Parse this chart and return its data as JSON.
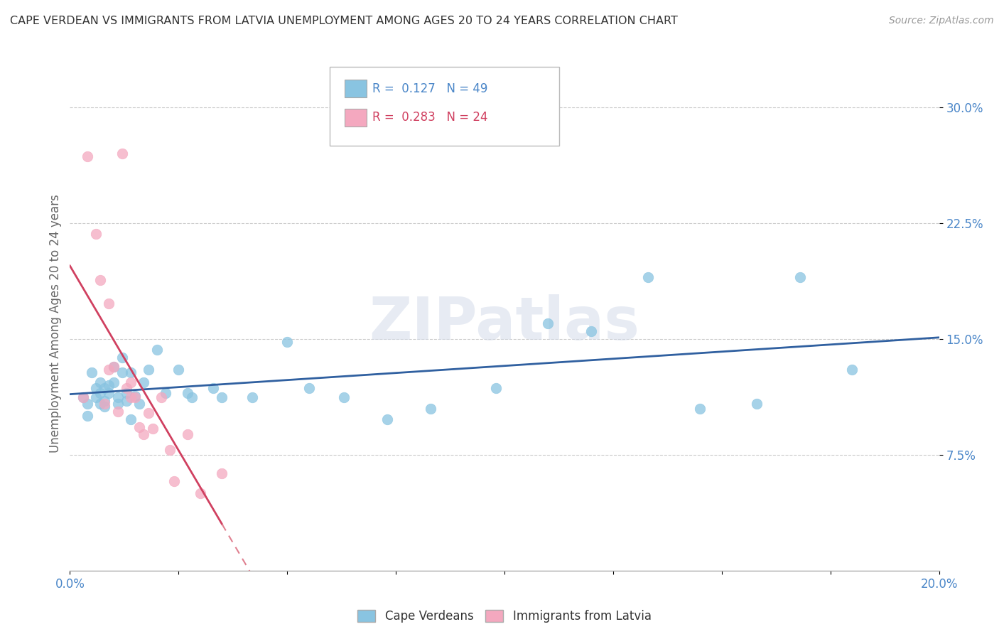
{
  "title": "CAPE VERDEAN VS IMMIGRANTS FROM LATVIA UNEMPLOYMENT AMONG AGES 20 TO 24 YEARS CORRELATION CHART",
  "source": "Source: ZipAtlas.com",
  "ylabel": "Unemployment Among Ages 20 to 24 years",
  "xlim": [
    0.0,
    0.2
  ],
  "ylim": [
    0.0,
    0.32
  ],
  "xticks": [
    0.0,
    0.025,
    0.05,
    0.075,
    0.1,
    0.125,
    0.15,
    0.175,
    0.2
  ],
  "ytick_positions": [
    0.075,
    0.15,
    0.225,
    0.3
  ],
  "yticklabels": [
    "7.5%",
    "15.0%",
    "22.5%",
    "30.0%"
  ],
  "grid_color": "#cccccc",
  "background_color": "#ffffff",
  "blue_color": "#89c4e1",
  "pink_color": "#f4a8bf",
  "line_blue": "#3060a0",
  "line_pink": "#d04060",
  "line_pink_dash": "#e08090",
  "blue_r": "0.127",
  "blue_n": "49",
  "pink_r": "0.283",
  "pink_n": "24",
  "cape_verdean_x": [
    0.003,
    0.004,
    0.004,
    0.005,
    0.006,
    0.006,
    0.007,
    0.007,
    0.007,
    0.008,
    0.008,
    0.008,
    0.009,
    0.009,
    0.01,
    0.01,
    0.011,
    0.011,
    0.012,
    0.012,
    0.013,
    0.013,
    0.014,
    0.014,
    0.015,
    0.016,
    0.017,
    0.018,
    0.02,
    0.022,
    0.025,
    0.027,
    0.028,
    0.033,
    0.035,
    0.042,
    0.05,
    0.055,
    0.063,
    0.073,
    0.083,
    0.098,
    0.11,
    0.12,
    0.133,
    0.145,
    0.158,
    0.168,
    0.18
  ],
  "cape_verdean_y": [
    0.112,
    0.108,
    0.1,
    0.128,
    0.118,
    0.112,
    0.122,
    0.115,
    0.108,
    0.118,
    0.11,
    0.106,
    0.12,
    0.115,
    0.132,
    0.122,
    0.112,
    0.108,
    0.138,
    0.128,
    0.115,
    0.11,
    0.128,
    0.098,
    0.113,
    0.108,
    0.122,
    0.13,
    0.143,
    0.115,
    0.13,
    0.115,
    0.112,
    0.118,
    0.112,
    0.112,
    0.148,
    0.118,
    0.112,
    0.098,
    0.105,
    0.118,
    0.16,
    0.155,
    0.19,
    0.105,
    0.108,
    0.19,
    0.13
  ],
  "latvia_x": [
    0.003,
    0.004,
    0.006,
    0.007,
    0.008,
    0.009,
    0.009,
    0.01,
    0.011,
    0.012,
    0.013,
    0.014,
    0.014,
    0.015,
    0.016,
    0.017,
    0.018,
    0.019,
    0.021,
    0.023,
    0.024,
    0.027,
    0.03,
    0.035
  ],
  "latvia_y": [
    0.112,
    0.268,
    0.218,
    0.188,
    0.108,
    0.173,
    0.13,
    0.132,
    0.103,
    0.27,
    0.118,
    0.122,
    0.112,
    0.112,
    0.093,
    0.088,
    0.102,
    0.092,
    0.112,
    0.078,
    0.058,
    0.088,
    0.05,
    0.063
  ]
}
